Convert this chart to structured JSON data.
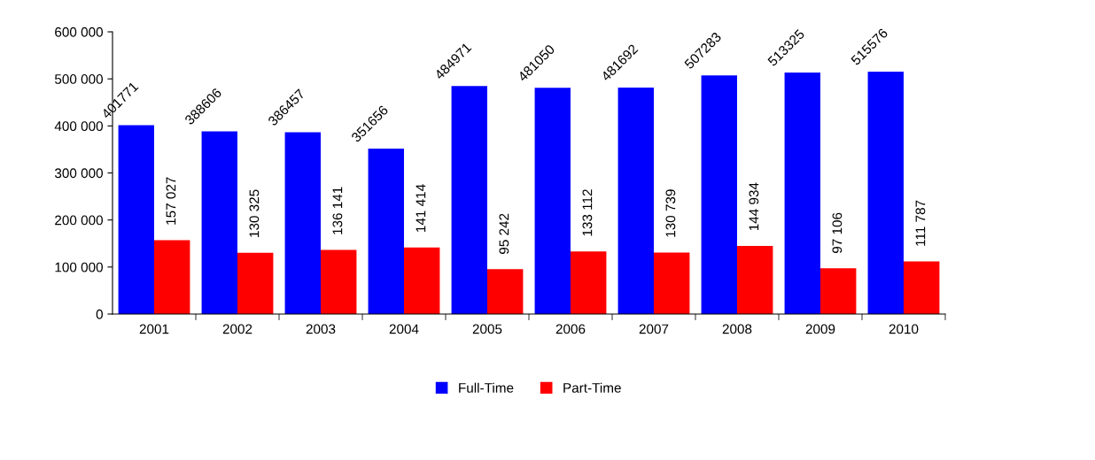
{
  "chart_data": {
    "type": "bar",
    "categories": [
      "2001",
      "2002",
      "2003",
      "2004",
      "2005",
      "2006",
      "2007",
      "2008",
      "2009",
      "2010"
    ],
    "series": [
      {
        "name": "Full-Time",
        "color": "#0000ff",
        "values": [
          401771,
          388606,
          386457,
          351656,
          484971,
          481050,
          481692,
          507283,
          513325,
          515576
        ],
        "value_labels": [
          "401771",
          "388606",
          "386457",
          "351656",
          "484971",
          "481050",
          "481692",
          "507283",
          "513325",
          "515576"
        ]
      },
      {
        "name": "Part-Time",
        "color": "#ff0000",
        "values": [
          157027,
          130325,
          136141,
          141414,
          95242,
          133112,
          130739,
          144934,
          97106,
          111787
        ],
        "value_labels": [
          "157 027",
          "130 325",
          "136 141",
          "141 414",
          "95 242",
          "133 112",
          "130 739",
          "144 934",
          "97 106",
          "111 787"
        ]
      }
    ],
    "ylim": [
      0,
      600000
    ],
    "yticks": [
      {
        "value": 0,
        "label": "0"
      },
      {
        "value": 100000,
        "label": "100 000"
      },
      {
        "value": 200000,
        "label": "200 000"
      },
      {
        "value": 300000,
        "label": "300 000"
      },
      {
        "value": 400000,
        "label": "400 000"
      },
      {
        "value": 500000,
        "label": "500 000"
      },
      {
        "value": 600000,
        "label": "600 000"
      }
    ],
    "grid": false,
    "legend": "bottom"
  }
}
